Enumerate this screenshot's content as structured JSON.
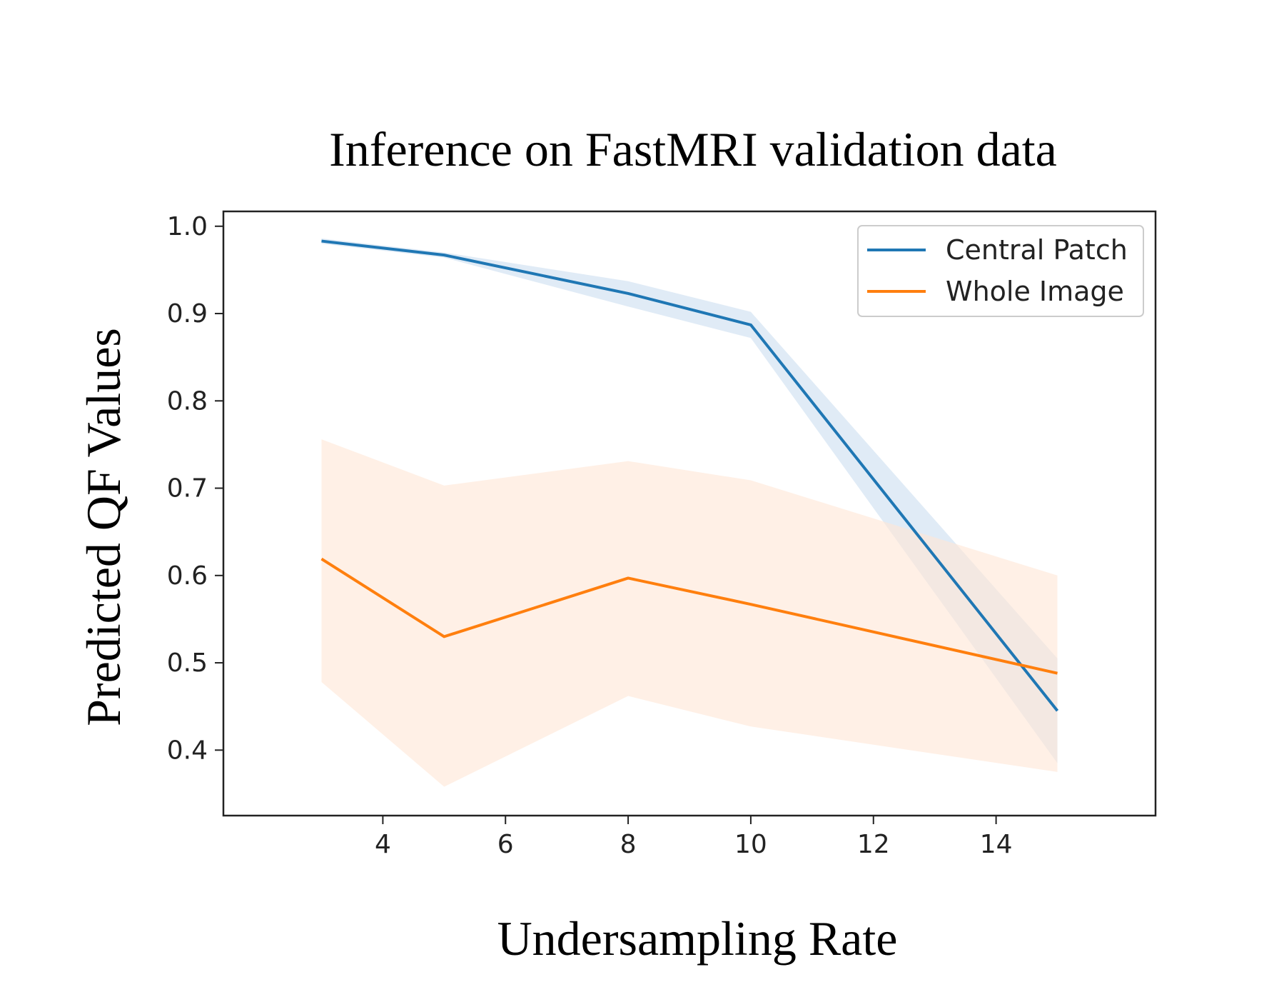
{
  "chart_data": {
    "type": "line",
    "title": "Inference on FastMRI validation data",
    "xlabel": "Undersampling Rate",
    "ylabel": "Predicted QF Values",
    "x": [
      3,
      5,
      8,
      10,
      15
    ],
    "xlim": [
      1.4,
      16.6
    ],
    "ylim": [
      0.325,
      1.017
    ],
    "xticks": [
      4,
      6,
      8,
      10,
      12,
      14
    ],
    "yticks": [
      0.4,
      0.5,
      0.6,
      0.7,
      0.8,
      0.9,
      1.0
    ],
    "ytick_labels": [
      "0.4",
      "0.5",
      "0.6",
      "0.7",
      "0.8",
      "0.9",
      "1.0"
    ],
    "grid": false,
    "legend_position": "top-right",
    "series": [
      {
        "name": "Central Patch",
        "color": "#1f77b4",
        "band_color": "#c6dbef",
        "values": [
          0.983,
          0.967,
          0.923,
          0.887,
          0.445
        ],
        "lower": [
          0.98,
          0.964,
          0.908,
          0.872,
          0.385
        ],
        "upper": [
          0.986,
          0.97,
          0.937,
          0.902,
          0.505
        ]
      },
      {
        "name": "Whole Image",
        "color": "#ff7f0e",
        "band_color": "#ffe6d5",
        "values": [
          0.619,
          0.53,
          0.597,
          0.567,
          0.488
        ],
        "lower": [
          0.478,
          0.358,
          0.462,
          0.427,
          0.375
        ],
        "upper": [
          0.756,
          0.703,
          0.731,
          0.709,
          0.6
        ]
      }
    ]
  }
}
